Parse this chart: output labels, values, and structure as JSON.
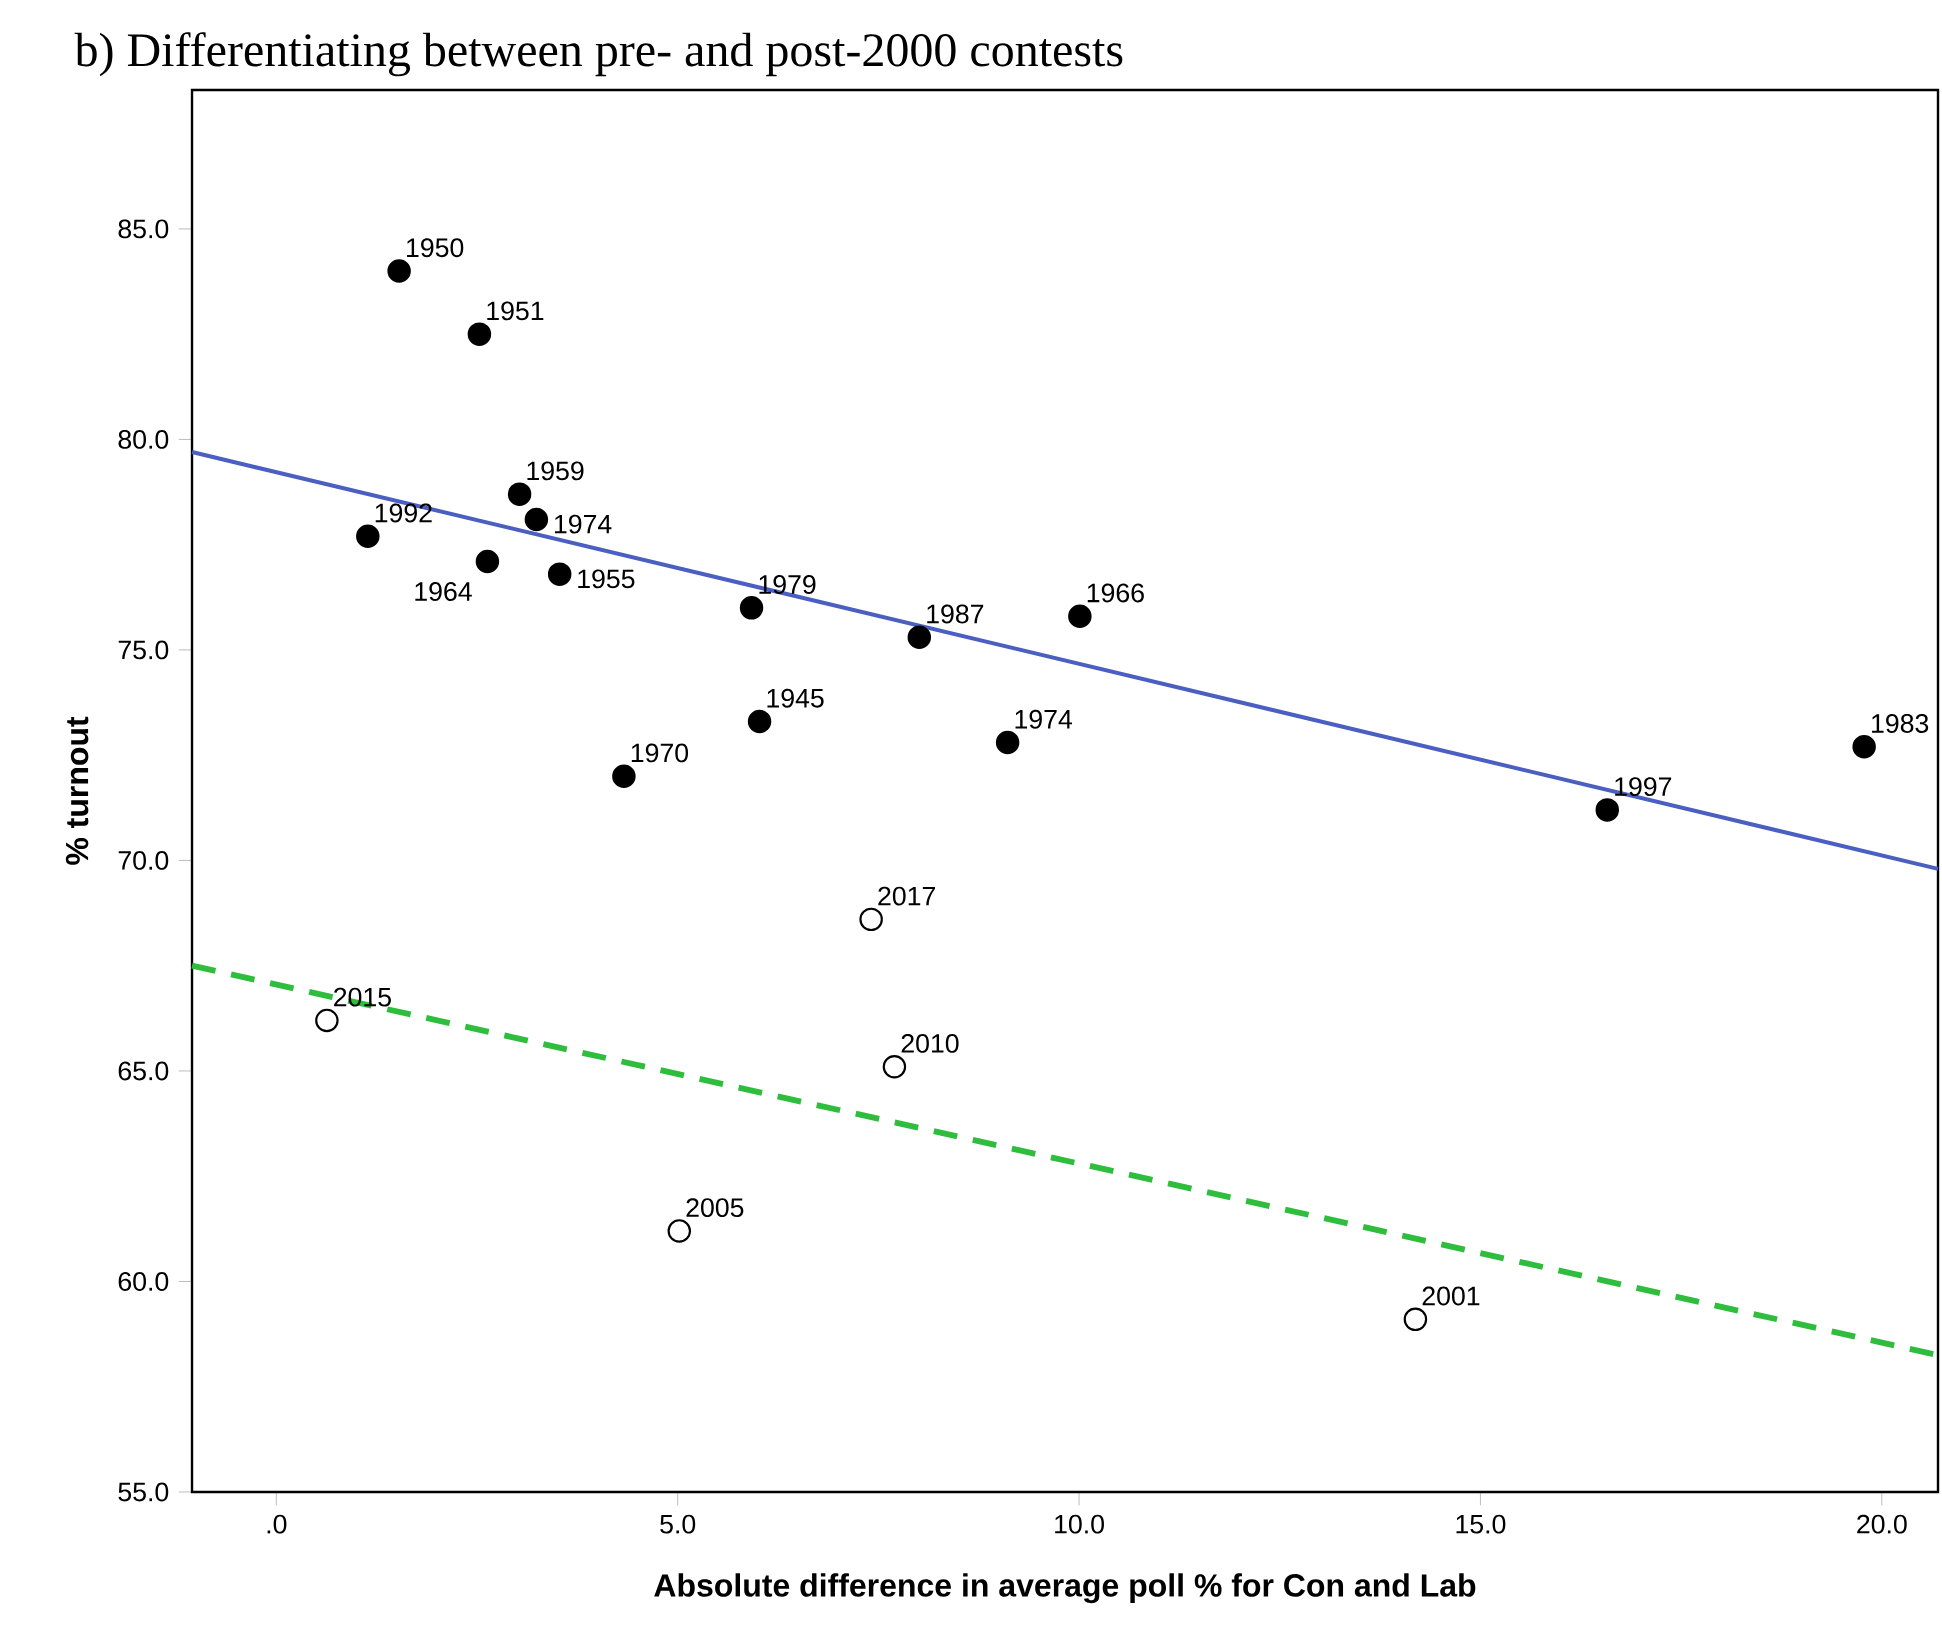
{
  "chart_data": {
    "type": "scatter",
    "title": "b)  Differentiating between pre- and post-2000 contests",
    "xlabel": "Absolute difference in average poll % for Con and Lab",
    "ylabel": "% turnout",
    "xlim": [
      -1.05,
      20.7
    ],
    "ylim": [
      55,
      88.3
    ],
    "xticks": [
      {
        "value": 0,
        "label": ".0"
      },
      {
        "value": 5,
        "label": "5.0"
      },
      {
        "value": 10,
        "label": "10.0"
      },
      {
        "value": 15,
        "label": "15.0"
      },
      {
        "value": 20,
        "label": "20.0"
      }
    ],
    "yticks": [
      {
        "value": 55,
        "label": "55.0"
      },
      {
        "value": 60,
        "label": "60.0"
      },
      {
        "value": 65,
        "label": "65.0"
      },
      {
        "value": 70,
        "label": "70.0"
      },
      {
        "value": 75,
        "label": "75.0"
      },
      {
        "value": 80,
        "label": "80.0"
      },
      {
        "value": 85,
        "label": "85.0"
      }
    ],
    "series": [
      {
        "color": "#000000",
        "marker": "circle",
        "x": [
          1.53,
          2.53,
          3.03,
          3.24,
          1.14,
          2.63,
          3.53,
          5.92,
          6.02,
          4.33,
          8.01,
          10.01,
          9.11,
          16.58,
          19.78
        ],
        "values": [
          84.0,
          82.5,
          78.7,
          78.1,
          77.7,
          77.1,
          76.8,
          76.0,
          73.3,
          72.0,
          75.3,
          75.8,
          72.8,
          71.2,
          72.7
        ]
      },
      {
        "color": "#ffffff",
        "marker": "circle",
        "x": [
          0.63,
          5.02,
          7.7,
          7.41,
          14.19
        ],
        "values": [
          66.2,
          61.2,
          65.1,
          68.6,
          59.1
        ]
      },
      {
        "type": "line",
        "color": "#4a5fc1",
        "marker": "none",
        "line_style": "solid",
        "x": [
          -1.05,
          20.7
        ],
        "values": [
          79.7,
          69.8
        ]
      },
      {
        "type": "line",
        "color": "#2ebd3c",
        "marker": "none",
        "line_style": "dashed",
        "x": [
          -1.05,
          20.7
        ],
        "values": [
          67.5,
          58.25
        ]
      }
    ],
    "annotations": [
      {
        "text": "1950",
        "x": 1.53,
        "y": 84.0
      },
      {
        "text": "1951",
        "x": 2.53,
        "y": 82.5
      },
      {
        "text": "1959",
        "x": 3.03,
        "y": 78.7
      },
      {
        "text": "1974",
        "x": 3.24,
        "y": 78.1
      },
      {
        "text": "1992",
        "x": 1.14,
        "y": 77.7
      },
      {
        "text": "1964",
        "x": 2.63,
        "y": 77.1
      },
      {
        "text": "1955",
        "x": 3.53,
        "y": 76.8
      },
      {
        "text": "1979",
        "x": 5.92,
        "y": 76.0
      },
      {
        "text": "1945",
        "x": 6.02,
        "y": 73.3
      },
      {
        "text": "1970",
        "x": 4.33,
        "y": 72.0
      },
      {
        "text": "1987",
        "x": 8.01,
        "y": 75.3
      },
      {
        "text": "1966",
        "x": 10.01,
        "y": 75.8
      },
      {
        "text": "1974",
        "x": 9.11,
        "y": 72.8
      },
      {
        "text": "1997",
        "x": 16.58,
        "y": 71.2
      },
      {
        "text": "1983",
        "x": 19.78,
        "y": 72.7
      },
      {
        "text": "2015",
        "x": 0.63,
        "y": 66.2
      },
      {
        "text": "2005",
        "x": 5.02,
        "y": 61.2
      },
      {
        "text": "2010",
        "x": 7.7,
        "y": 65.1
      },
      {
        "text": "2017",
        "x": 7.41,
        "y": 68.6
      },
      {
        "text": "2001",
        "x": 14.19,
        "y": 59.1
      }
    ]
  }
}
